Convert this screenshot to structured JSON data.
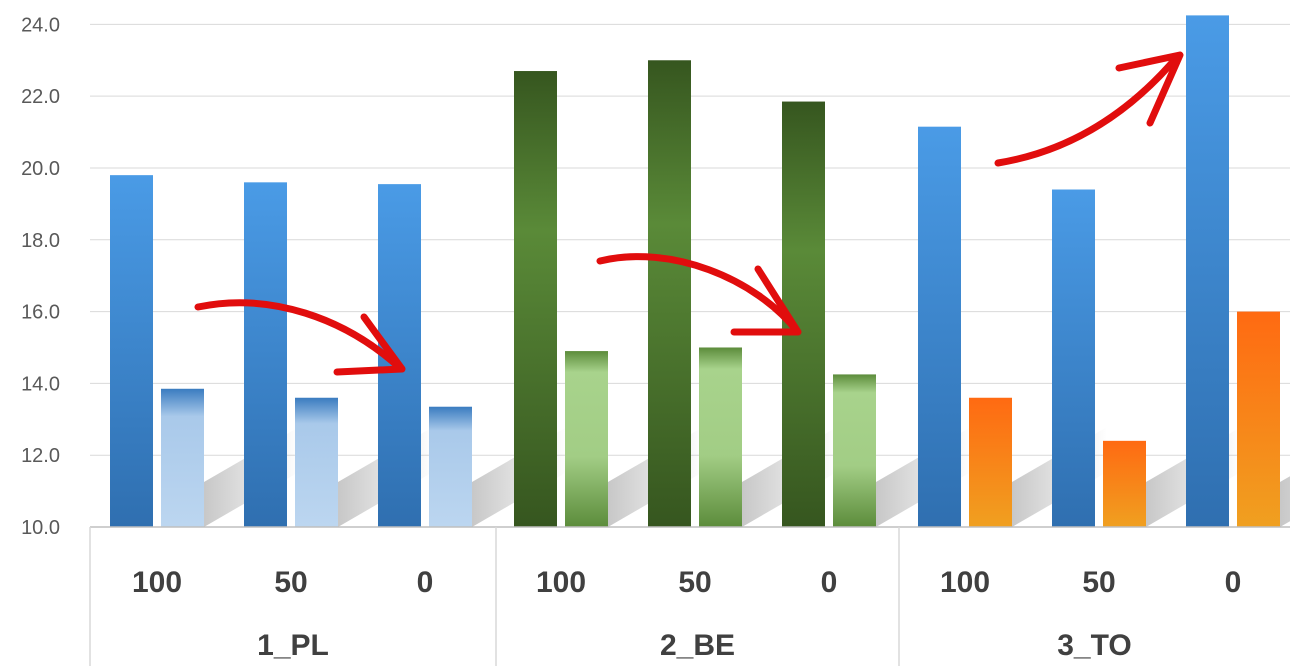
{
  "chart_data": {
    "type": "bar",
    "title": "",
    "xlabel": "",
    "ylabel": "",
    "ylim": [
      10,
      24.4
    ],
    "yticks": [
      "10.0",
      "12.0",
      "14.0",
      "16.0",
      "18.0",
      "20.0",
      "22.0",
      "24.0"
    ],
    "grid": true,
    "legend": "none",
    "groups": [
      {
        "name": "1_PL",
        "categories": [
          "100",
          "50",
          "0"
        ],
        "values_a": [
          19.8,
          19.6,
          19.55
        ],
        "values_b": [
          13.85,
          13.6,
          13.35
        ],
        "colors": [
          "#3d85c6",
          "#a9c8e8"
        ]
      },
      {
        "name": "2_BE",
        "categories": [
          "100",
          "50",
          "0"
        ],
        "values_a": [
          22.7,
          23.0,
          21.85
        ],
        "values_b": [
          14.9,
          15.0,
          14.25
        ],
        "colors": [
          "#3f6b2a",
          "#8cbf6e"
        ]
      },
      {
        "name": "3_TO",
        "categories": [
          "100",
          "50",
          "0"
        ],
        "values_a": [
          21.15,
          19.4,
          24.25
        ],
        "values_b": [
          13.6,
          12.4,
          16.0
        ],
        "colors": [
          "#3d85c6",
          "#f48a1e"
        ]
      }
    ]
  }
}
